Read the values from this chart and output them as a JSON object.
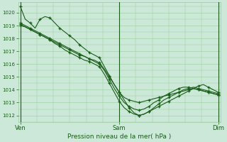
{
  "xlabel": "Pression niveau de la mer( hPa )",
  "bg_color": "#cce8d8",
  "line_color": "#1a5c1a",
  "grid_color": "#99cc99",
  "tick_color": "#1a5c1a",
  "label_color": "#1a5c1a",
  "ylim": [
    1011.5,
    1020.8
  ],
  "yticks": [
    1012,
    1013,
    1014,
    1015,
    1016,
    1017,
    1018,
    1019,
    1020
  ],
  "xtick_labels": [
    "Ven",
    "Sam",
    "Dim"
  ],
  "xtick_positions": [
    0,
    48,
    96
  ],
  "xlim": [
    -1,
    97
  ],
  "lines": [
    [
      1020.5,
      1019.5,
      1019.2,
      1018.8,
      1019.5,
      1019.7,
      1019.6,
      1019.2,
      1018.8,
      1018.5,
      1018.2,
      1017.9,
      1017.5,
      1017.2,
      1016.9,
      1016.7,
      1016.5,
      1015.8,
      1015.1,
      1014.4,
      1013.8,
      1013.2,
      1012.6,
      1012.2,
      1012.0,
      1012.1,
      1012.3,
      1012.5,
      1012.7,
      1012.9,
      1013.1,
      1013.3,
      1013.5,
      1013.7,
      1013.9,
      1014.1,
      1014.3,
      1014.4,
      1014.2,
      1014.0,
      1013.8
    ],
    [
      1019.0,
      1018.9,
      1018.7,
      1018.5,
      1018.3,
      1018.1,
      1017.9,
      1017.7,
      1017.5,
      1017.3,
      1017.1,
      1016.9,
      1016.7,
      1016.6,
      1016.4,
      1016.3,
      1016.1,
      1015.6,
      1015.0,
      1014.4,
      1013.8,
      1013.4,
      1013.2,
      1013.1,
      1013.0,
      1013.1,
      1013.2,
      1013.3,
      1013.4,
      1013.5,
      1013.6,
      1013.7,
      1013.8,
      1013.9,
      1014.0,
      1014.1,
      1014.0,
      1013.9,
      1013.8,
      1013.7,
      1013.6
    ],
    [
      1019.1,
      1018.9,
      1018.7,
      1018.5,
      1018.3,
      1018.1,
      1017.9,
      1017.6,
      1017.4,
      1017.1,
      1016.9,
      1016.7,
      1016.5,
      1016.3,
      1016.2,
      1016.0,
      1015.8,
      1015.2,
      1014.5,
      1013.8,
      1013.1,
      1012.6,
      1012.3,
      1012.1,
      1012.0,
      1012.1,
      1012.3,
      1012.6,
      1012.9,
      1013.2,
      1013.4,
      1013.6,
      1013.8,
      1014.0,
      1014.1,
      1014.2,
      1014.1,
      1014.0,
      1013.9,
      1013.8,
      1013.7
    ],
    [
      1019.2,
      1019.0,
      1018.8,
      1018.6,
      1018.4,
      1018.2,
      1018.0,
      1017.8,
      1017.6,
      1017.4,
      1017.2,
      1017.0,
      1016.8,
      1016.6,
      1016.4,
      1016.2,
      1016.0,
      1015.5,
      1014.8,
      1014.1,
      1013.5,
      1013.0,
      1012.7,
      1012.5,
      1012.4,
      1012.5,
      1012.7,
      1013.0,
      1013.2,
      1013.5,
      1013.7,
      1013.9,
      1014.1,
      1014.2,
      1014.2,
      1014.1,
      1014.0,
      1013.9,
      1013.8,
      1013.7,
      1013.6
    ]
  ],
  "ytick_fontsize": 5.0,
  "xtick_fontsize": 6.0,
  "xlabel_fontsize": 6.5
}
